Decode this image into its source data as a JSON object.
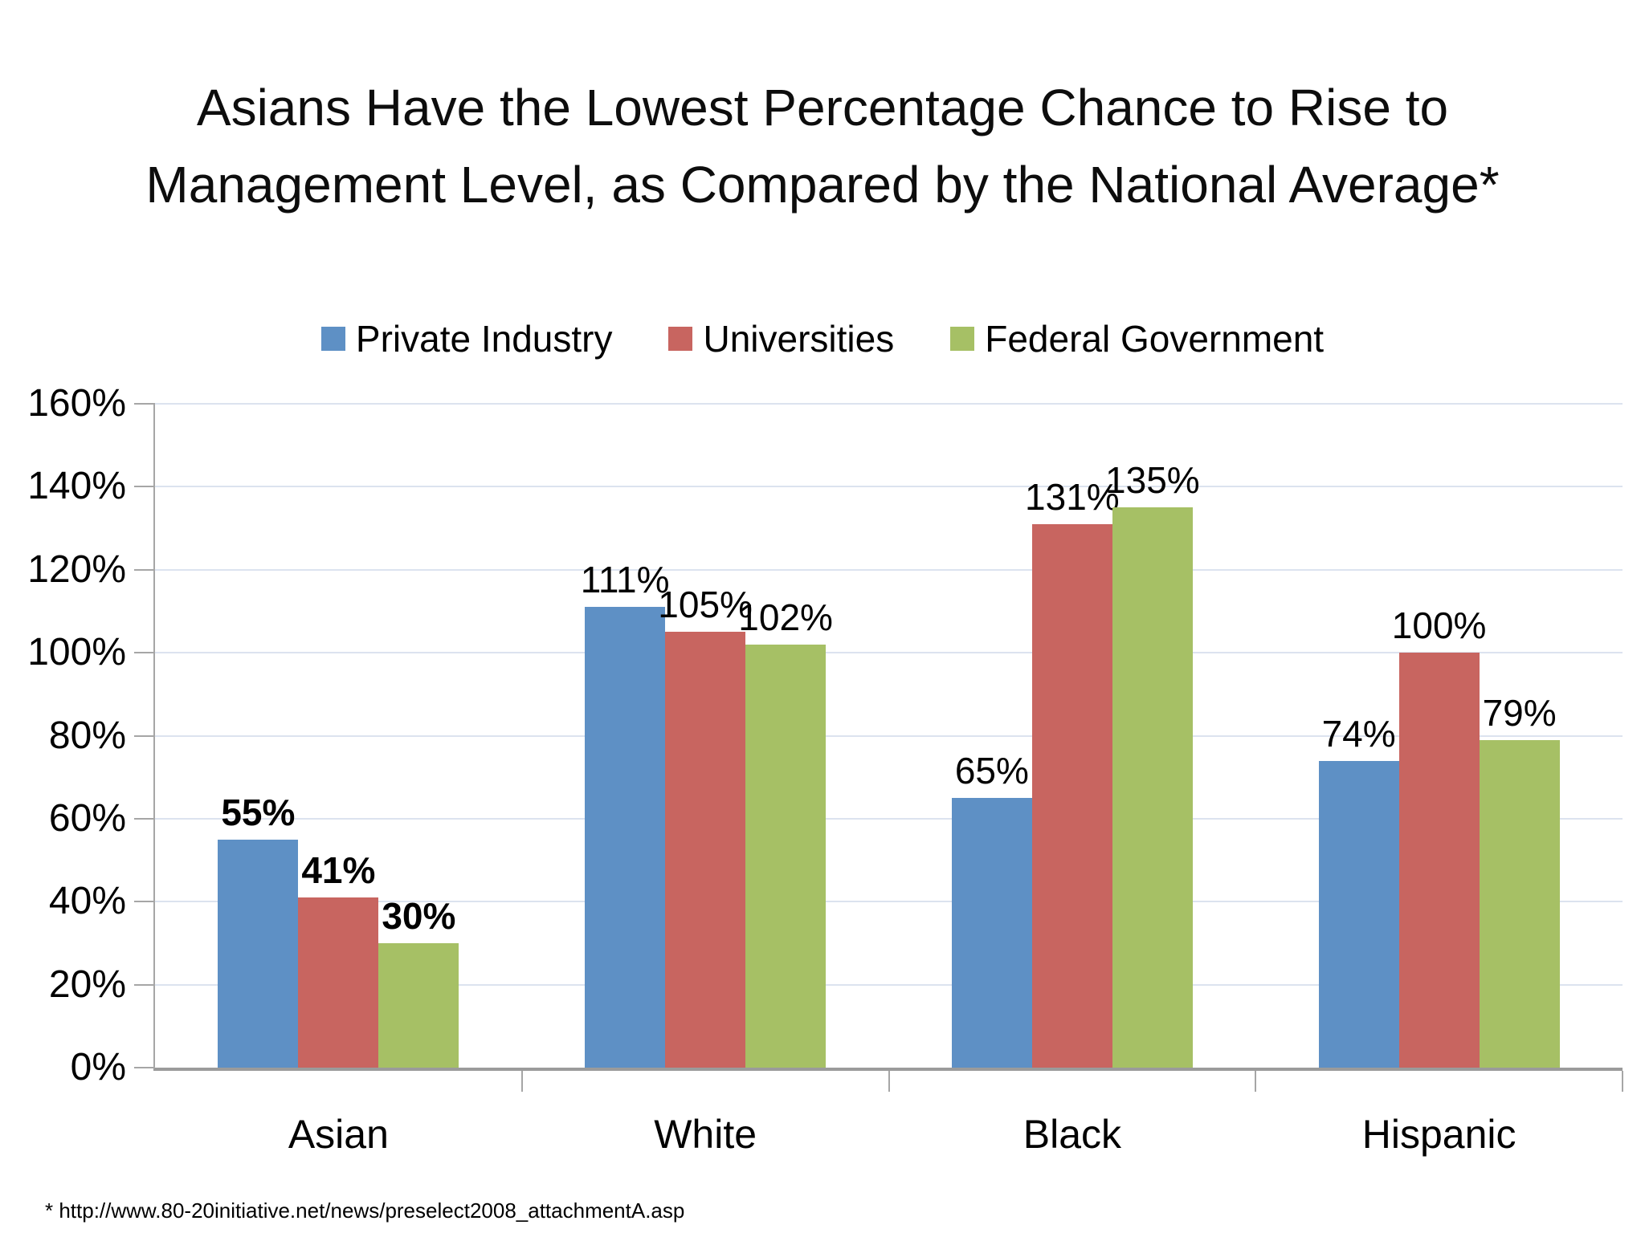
{
  "slide": {
    "title": "Asians Have the Lowest Percentage Chance to Rise to Management Level, as Compared by the National Average*",
    "footnote": "* http://www.80-20initiative.net/news/preselect2008_attachmentA.asp"
  },
  "chart_data": {
    "type": "bar",
    "title": "Asians Have the Lowest Percentage Chance to Rise to Management Level, as Compared by the National Average*",
    "categories": [
      "Asian",
      "White",
      "Black",
      "Hispanic"
    ],
    "series": [
      {
        "name": "Private Industry",
        "color": "#5E90C5",
        "values": [
          55,
          111,
          65,
          74
        ]
      },
      {
        "name": "Universities",
        "color": "#C86560",
        "values": [
          41,
          105,
          131,
          100
        ]
      },
      {
        "name": "Federal Government",
        "color": "#A6C065",
        "values": [
          30,
          102,
          135,
          79
        ]
      }
    ],
    "value_label_suffix": "%",
    "bold_value_labels_category": "Asian",
    "xlabel": "",
    "ylabel": "",
    "y_axis": {
      "min": 0,
      "max": 160,
      "step": 20,
      "suffix": "%"
    },
    "grid": true,
    "legend_position": "top",
    "colors": {
      "axis": "#A6A6A6",
      "baseline": "#9B9B9B",
      "gridline": "#DCE3EF",
      "text": "#000000"
    }
  }
}
